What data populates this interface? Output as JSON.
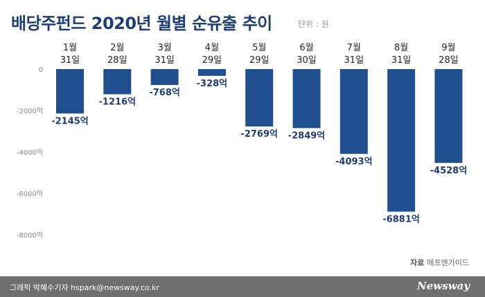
{
  "title": "배당주펀드 2020년 월별 순유출 추이",
  "unit_label": "단위 : 원",
  "source_label": "자료",
  "source_name": "에프앤가이드",
  "footer": {
    "credit": "그래픽 박혜수기자 hspark@newsway.co.kr",
    "brand": "Newsway"
  },
  "colors": {
    "bar": "#1f4f8f",
    "value_text": "#1d3d78",
    "title": "#1d3d78",
    "axis_text": "#8a8a8a",
    "footer_bg": "#6f6f6f"
  },
  "chart_data": {
    "type": "bar",
    "categories": [
      [
        "1월",
        "31일"
      ],
      [
        "2월",
        "28일"
      ],
      [
        "3월",
        "31일"
      ],
      [
        "4월",
        "29일"
      ],
      [
        "5월",
        "29일"
      ],
      [
        "6월",
        "30일"
      ],
      [
        "7월",
        "31일"
      ],
      [
        "8월",
        "31일"
      ],
      [
        "9월",
        "28일"
      ]
    ],
    "values": [
      -2145,
      -1216,
      -768,
      -328,
      -2769,
      -2849,
      -4093,
      -6881,
      -4528
    ],
    "value_labels": [
      "-2145억",
      "-1216억",
      "-768억",
      "-328억",
      "-2769억",
      "-2849억",
      "-4093억",
      "-6881억",
      "-4528억"
    ],
    "y_ticks": [
      0,
      -2000,
      -4000,
      -6000,
      -8000
    ],
    "y_tick_labels": [
      "0",
      "-2000억",
      "-4000억",
      "-6000억",
      "-8000억"
    ],
    "ylim": [
      -8000,
      0
    ],
    "grid": false,
    "legend": "none"
  }
}
